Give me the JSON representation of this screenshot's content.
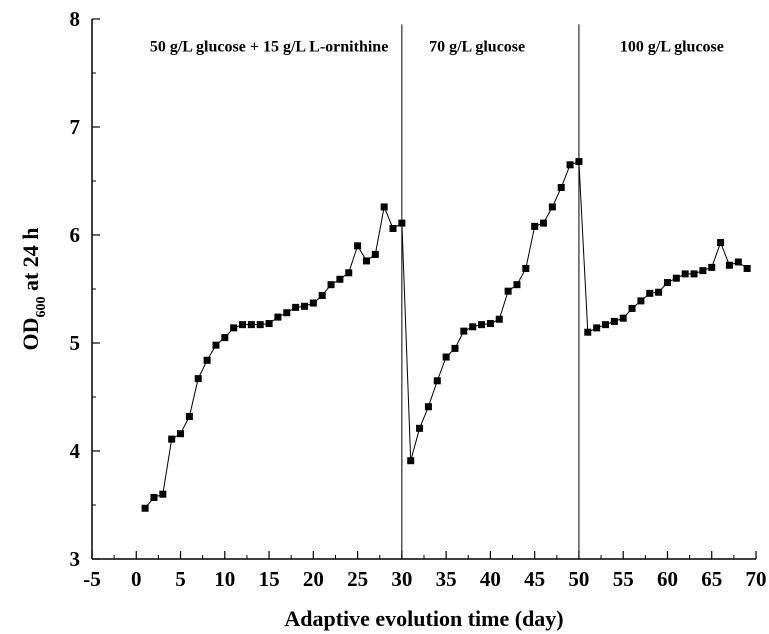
{
  "chart_data": {
    "type": "line",
    "xlabel": "Adaptive evolution time (day)",
    "ylabel": "OD",
    "ylabel_sub": "600",
    "ylabel_suffix": " at 24 h",
    "xlim": [
      -5,
      70
    ],
    "ylim": [
      3,
      8
    ],
    "xticks": [
      -5,
      0,
      5,
      10,
      15,
      20,
      25,
      30,
      35,
      40,
      45,
      50,
      55,
      60,
      65,
      70
    ],
    "yticks": [
      3,
      4,
      5,
      6,
      7,
      8
    ],
    "grid": false,
    "legend": "none",
    "marker": "square",
    "color": "#000000",
    "phase_boundaries": [
      30,
      50
    ],
    "annotations": [
      {
        "text": "50 g/L glucose + 15 g/L L-ornithine",
        "x": 15,
        "y": 7.7
      },
      {
        "text": "70 g/L glucose",
        "x": 38.5,
        "y": 7.7
      },
      {
        "text": "100 g/L glucose",
        "x": 60.5,
        "y": 7.7
      }
    ],
    "x": [
      1,
      2,
      3,
      4,
      5,
      6,
      7,
      8,
      9,
      10,
      11,
      12,
      13,
      14,
      15,
      16,
      17,
      18,
      19,
      20,
      21,
      22,
      23,
      24,
      25,
      26,
      27,
      28,
      29,
      30,
      31,
      32,
      33,
      34,
      35,
      36,
      37,
      38,
      39,
      40,
      41,
      42,
      43,
      44,
      45,
      46,
      47,
      48,
      49,
      50,
      51,
      52,
      53,
      54,
      55,
      56,
      57,
      58,
      59,
      60,
      61,
      62,
      63,
      64,
      65,
      66,
      67,
      68,
      69
    ],
    "y": [
      3.47,
      3.57,
      3.6,
      4.11,
      4.16,
      4.32,
      4.67,
      4.84,
      4.98,
      5.05,
      5.14,
      5.17,
      5.17,
      5.17,
      5.18,
      5.24,
      5.28,
      5.33,
      5.34,
      5.37,
      5.44,
      5.54,
      5.59,
      5.65,
      5.9,
      5.76,
      5.82,
      6.26,
      6.06,
      6.11,
      3.91,
      4.21,
      4.41,
      4.65,
      4.87,
      4.95,
      5.11,
      5.15,
      5.17,
      5.18,
      5.22,
      5.48,
      5.54,
      5.69,
      6.08,
      6.11,
      6.26,
      6.44,
      6.65,
      6.68,
      5.1,
      5.14,
      5.17,
      5.2,
      5.23,
      5.32,
      5.39,
      5.46,
      5.47,
      5.56,
      5.6,
      5.64,
      5.64,
      5.67,
      5.7,
      5.93,
      5.72,
      5.75,
      5.69
    ]
  }
}
